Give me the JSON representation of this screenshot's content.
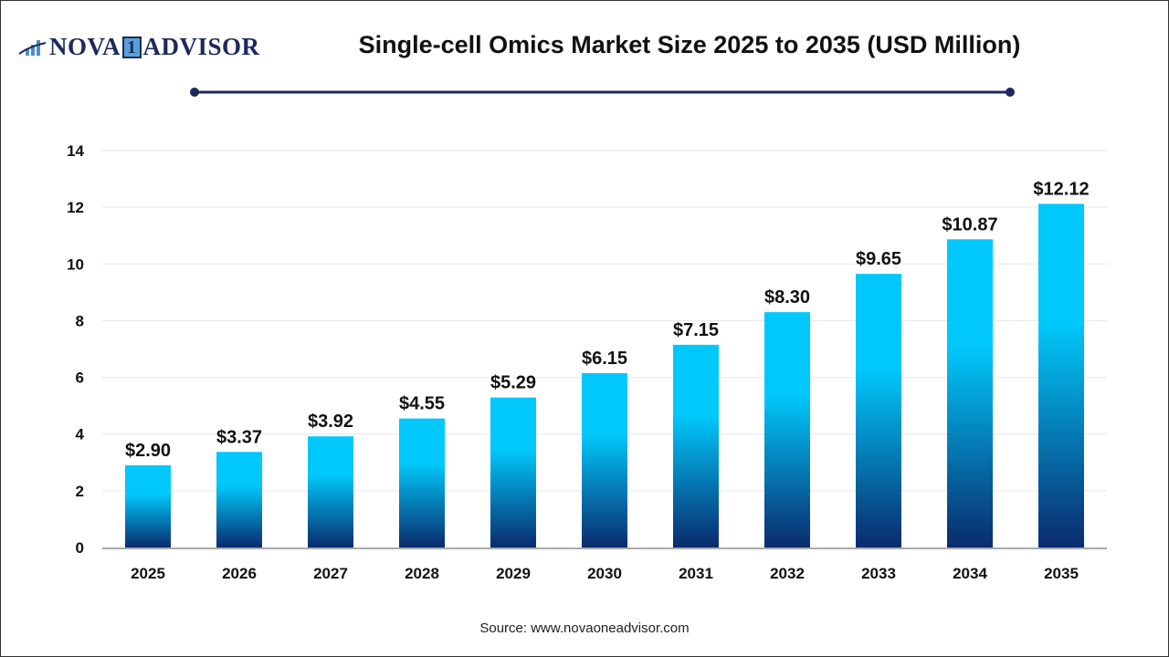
{
  "logo": {
    "text_left": "NOVA",
    "text_num": "1",
    "text_right": "ADVISOR"
  },
  "source": "Source: www.novaoneadvisor.com",
  "colors": {
    "bar_top": "#00c8fa",
    "bar_bottom": "#0a2b6d",
    "divider": "#1b2a5c"
  },
  "chart_data": {
    "type": "bar",
    "title": "Single-cell Omics Market Size 2025 to 2035 (USD Million)",
    "xlabel": "",
    "ylabel": "",
    "categories": [
      "2025",
      "2026",
      "2027",
      "2028",
      "2029",
      "2030",
      "2031",
      "2032",
      "2033",
      "2034",
      "2035"
    ],
    "values": [
      2.9,
      3.37,
      3.92,
      4.55,
      5.29,
      6.15,
      7.15,
      8.3,
      9.65,
      10.87,
      12.12
    ],
    "data_labels": [
      "$2.90",
      "$3.37",
      "$3.92",
      "$4.55",
      "$5.29",
      "$6.15",
      "$7.15",
      "$8.30",
      "$9.65",
      "$10.87",
      "$12.12"
    ],
    "ylim": [
      0,
      14
    ],
    "yticks": [
      0,
      2,
      4,
      6,
      8,
      10,
      12,
      14
    ],
    "grid": true,
    "legend": "none"
  }
}
